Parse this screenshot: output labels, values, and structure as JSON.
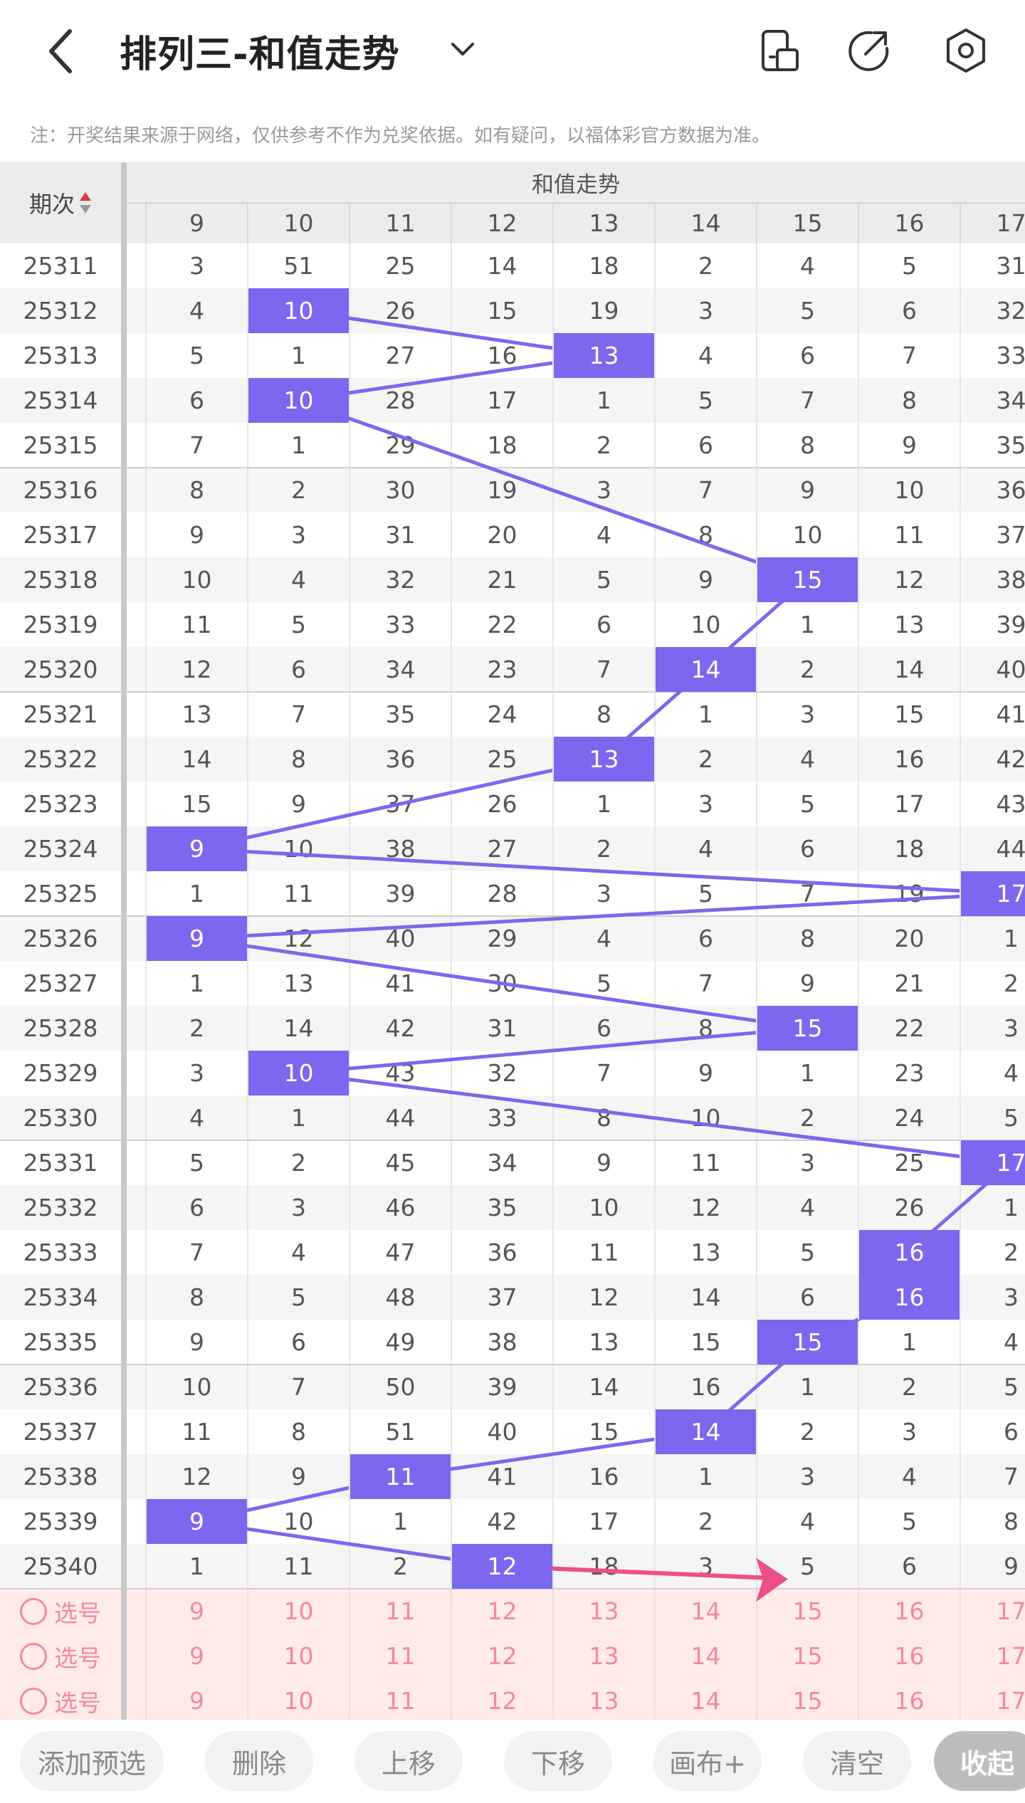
{
  "header": {
    "title": "排列三-和值走势",
    "icons": [
      "back-arrow-icon",
      "chevron-down-icon",
      "phone-layout-icon",
      "share-icon",
      "settings-icon"
    ]
  },
  "notice": "注：开奖结果来源于网络，仅供参考不作为兑奖依据。如有疑问，以福体彩官方数据为准。",
  "table": {
    "period_header": "期次",
    "group_header": "和值走势",
    "columns": [
      "9",
      "10",
      "11",
      "12",
      "13",
      "14",
      "15",
      "16",
      "17"
    ],
    "rows": [
      {
        "period": "25311",
        "values": [
          "3",
          "51",
          "25",
          "14",
          "18",
          "2",
          "4",
          "5",
          "31"
        ],
        "hit": null
      },
      {
        "period": "25312",
        "values": [
          "4",
          "10",
          "26",
          "15",
          "19",
          "3",
          "5",
          "6",
          "32"
        ],
        "hit": 1
      },
      {
        "period": "25313",
        "values": [
          "5",
          "1",
          "27",
          "16",
          "13",
          "4",
          "6",
          "7",
          "33"
        ],
        "hit": 4
      },
      {
        "period": "25314",
        "values": [
          "6",
          "10",
          "28",
          "17",
          "1",
          "5",
          "7",
          "8",
          "34"
        ],
        "hit": 1
      },
      {
        "period": "25315",
        "values": [
          "7",
          "1",
          "29",
          "18",
          "2",
          "6",
          "8",
          "9",
          "35"
        ],
        "hit": null
      },
      {
        "period": "25316",
        "values": [
          "8",
          "2",
          "30",
          "19",
          "3",
          "7",
          "9",
          "10",
          "36"
        ],
        "hit": null
      },
      {
        "period": "25317",
        "values": [
          "9",
          "3",
          "31",
          "20",
          "4",
          "8",
          "10",
          "11",
          "37"
        ],
        "hit": null
      },
      {
        "period": "25318",
        "values": [
          "10",
          "4",
          "32",
          "21",
          "5",
          "9",
          "15",
          "12",
          "38"
        ],
        "hit": 6
      },
      {
        "period": "25319",
        "values": [
          "11",
          "5",
          "33",
          "22",
          "6",
          "10",
          "1",
          "13",
          "39"
        ],
        "hit": null
      },
      {
        "period": "25320",
        "values": [
          "12",
          "6",
          "34",
          "23",
          "7",
          "14",
          "2",
          "14",
          "40"
        ],
        "hit": 5
      },
      {
        "period": "25321",
        "values": [
          "13",
          "7",
          "35",
          "24",
          "8",
          "1",
          "3",
          "15",
          "41"
        ],
        "hit": null
      },
      {
        "period": "25322",
        "values": [
          "14",
          "8",
          "36",
          "25",
          "13",
          "2",
          "4",
          "16",
          "42"
        ],
        "hit": 4
      },
      {
        "period": "25323",
        "values": [
          "15",
          "9",
          "37",
          "26",
          "1",
          "3",
          "5",
          "17",
          "43"
        ],
        "hit": null
      },
      {
        "period": "25324",
        "values": [
          "9",
          "10",
          "38",
          "27",
          "2",
          "4",
          "6",
          "18",
          "44"
        ],
        "hit": 0
      },
      {
        "period": "25325",
        "values": [
          "1",
          "11",
          "39",
          "28",
          "3",
          "5",
          "7",
          "19",
          "17"
        ],
        "hit": 8
      },
      {
        "period": "25326",
        "values": [
          "9",
          "12",
          "40",
          "29",
          "4",
          "6",
          "8",
          "20",
          "1"
        ],
        "hit": 0
      },
      {
        "period": "25327",
        "values": [
          "1",
          "13",
          "41",
          "30",
          "5",
          "7",
          "9",
          "21",
          "2"
        ],
        "hit": null
      },
      {
        "period": "25328",
        "values": [
          "2",
          "14",
          "42",
          "31",
          "6",
          "8",
          "15",
          "22",
          "3"
        ],
        "hit": 6
      },
      {
        "period": "25329",
        "values": [
          "3",
          "10",
          "43",
          "32",
          "7",
          "9",
          "1",
          "23",
          "4"
        ],
        "hit": 1
      },
      {
        "period": "25330",
        "values": [
          "4",
          "1",
          "44",
          "33",
          "8",
          "10",
          "2",
          "24",
          "5"
        ],
        "hit": null
      },
      {
        "period": "25331",
        "values": [
          "5",
          "2",
          "45",
          "34",
          "9",
          "11",
          "3",
          "25",
          "17"
        ],
        "hit": 8
      },
      {
        "period": "25332",
        "values": [
          "6",
          "3",
          "46",
          "35",
          "10",
          "12",
          "4",
          "26",
          "1"
        ],
        "hit": null
      },
      {
        "period": "25333",
        "values": [
          "7",
          "4",
          "47",
          "36",
          "11",
          "13",
          "5",
          "16",
          "2"
        ],
        "hit": 7
      },
      {
        "period": "25334",
        "values": [
          "8",
          "5",
          "48",
          "37",
          "12",
          "14",
          "6",
          "16",
          "3"
        ],
        "hit": 7
      },
      {
        "period": "25335",
        "values": [
          "9",
          "6",
          "49",
          "38",
          "13",
          "15",
          "15",
          "1",
          "4"
        ],
        "hit": 6
      },
      {
        "period": "25336",
        "values": [
          "10",
          "7",
          "50",
          "39",
          "14",
          "16",
          "1",
          "2",
          "5"
        ],
        "hit": null
      },
      {
        "period": "25337",
        "values": [
          "11",
          "8",
          "51",
          "40",
          "15",
          "14",
          "2",
          "3",
          "6"
        ],
        "hit": 5
      },
      {
        "period": "25338",
        "values": [
          "12",
          "9",
          "11",
          "41",
          "16",
          "1",
          "3",
          "4",
          "7"
        ],
        "hit": 2
      },
      {
        "period": "25339",
        "values": [
          "9",
          "10",
          "1",
          "42",
          "17",
          "2",
          "4",
          "5",
          "8"
        ],
        "hit": 0
      },
      {
        "period": "25340",
        "values": [
          "1",
          "11",
          "2",
          "12",
          "18",
          "3",
          "5",
          "6",
          "9"
        ],
        "hit": 3
      }
    ],
    "select_rows": [
      {
        "label": "选号",
        "values": [
          "9",
          "10",
          "11",
          "12",
          "13",
          "14",
          "15",
          "16",
          "17"
        ]
      },
      {
        "label": "选号",
        "values": [
          "9",
          "10",
          "11",
          "12",
          "13",
          "14",
          "15",
          "16",
          "17"
        ]
      },
      {
        "label": "选号",
        "values": [
          "9",
          "10",
          "11",
          "12",
          "13",
          "14",
          "15",
          "16",
          "17"
        ]
      }
    ]
  },
  "toolbar": {
    "add_preselect": "添加预选",
    "delete": "删除",
    "move_up": "上移",
    "move_down": "下移",
    "canvas_plus": "画布+",
    "clear": "清空",
    "collapse": "收起"
  },
  "colors": {
    "hit_fill": "#7b68ee",
    "trend_line": "#7b68ee",
    "arrow": "#ee4f88",
    "select_bg": "#ffebe8",
    "select_text": "#f3899c",
    "row_alt": "#f5f5f5",
    "header_bg": "#ececec"
  }
}
